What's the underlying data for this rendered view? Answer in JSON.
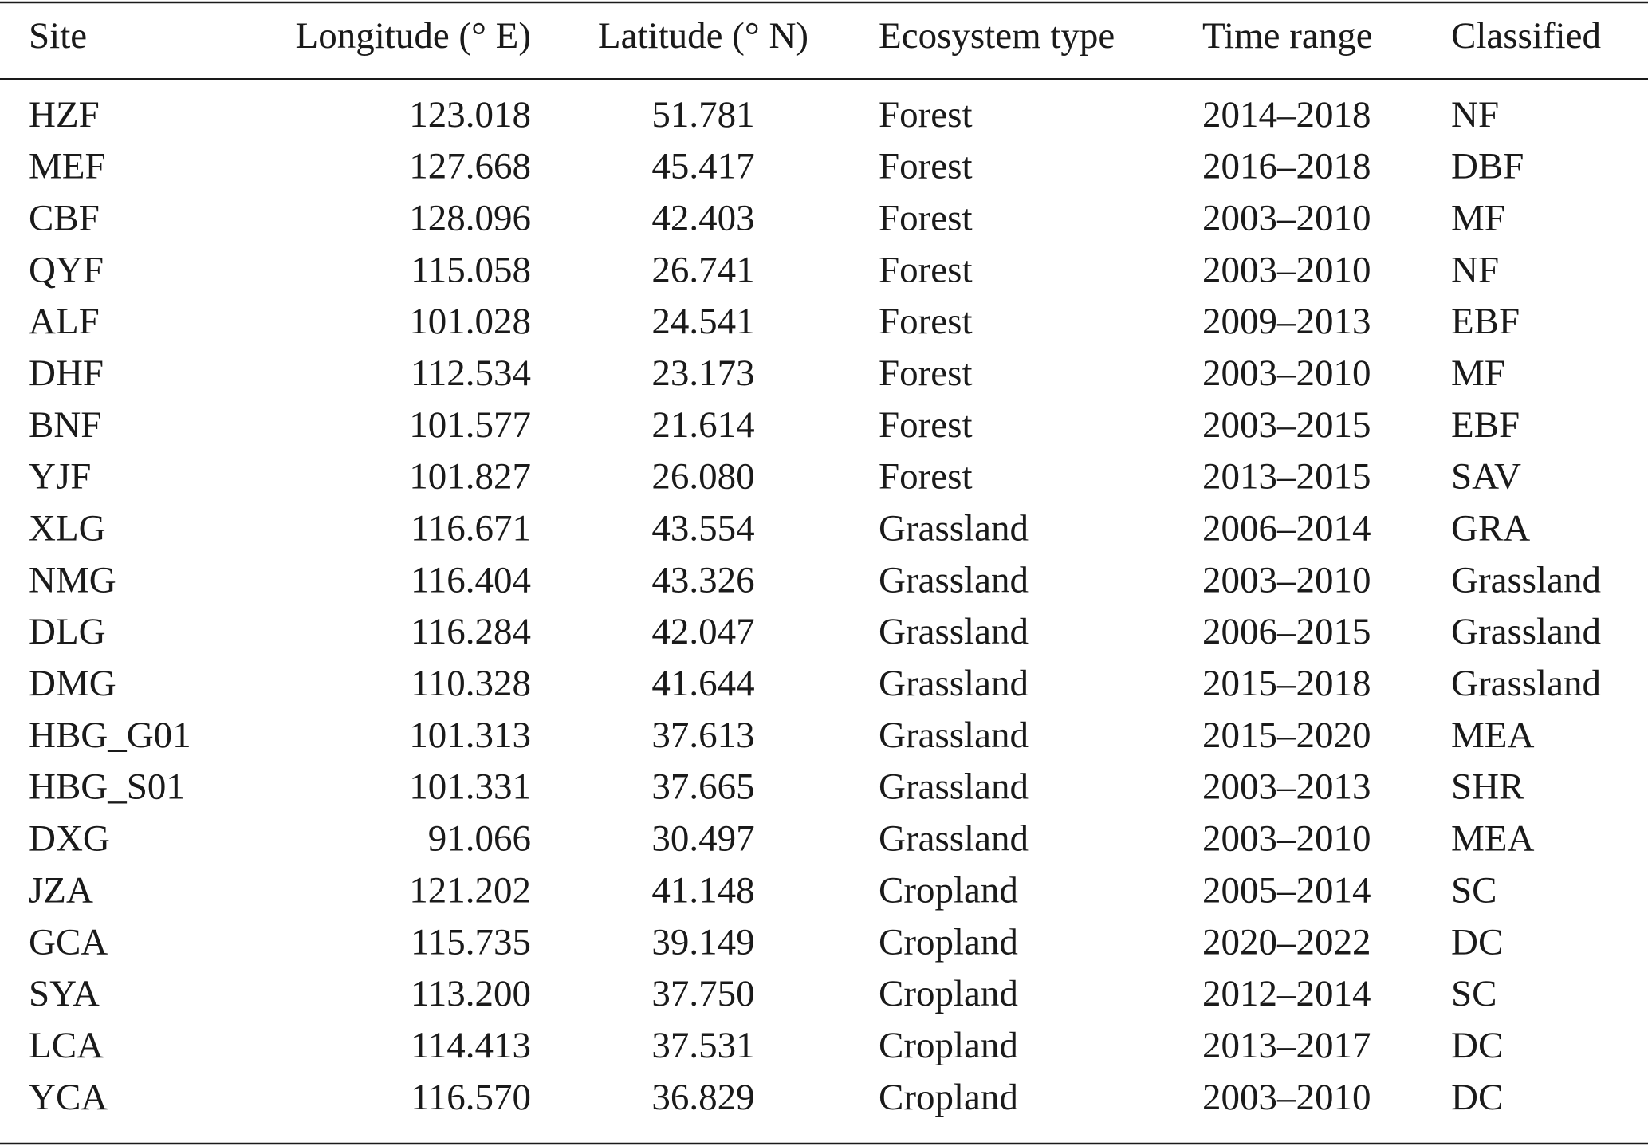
{
  "table": {
    "header": [
      "Site",
      "Longitude (° E)",
      "Latitude (° N)",
      "Ecosystem type",
      "Time range",
      "Classified"
    ],
    "rows": [
      [
        "HZF",
        "123.018",
        "51.781",
        "Forest",
        "2014–2018",
        "NF"
      ],
      [
        "MEF",
        "127.668",
        "45.417",
        "Forest",
        "2016–2018",
        "DBF"
      ],
      [
        "CBF",
        "128.096",
        "42.403",
        "Forest",
        "2003–2010",
        "MF"
      ],
      [
        "QYF",
        "115.058",
        "26.741",
        "Forest",
        "2003–2010",
        "NF"
      ],
      [
        "ALF",
        "101.028",
        "24.541",
        "Forest",
        "2009–2013",
        "EBF"
      ],
      [
        "DHF",
        "112.534",
        "23.173",
        "Forest",
        "2003–2010",
        "MF"
      ],
      [
        "BNF",
        "101.577",
        "21.614",
        "Forest",
        "2003–2015",
        "EBF"
      ],
      [
        "YJF",
        "101.827",
        "26.080",
        "Forest",
        "2013–2015",
        "SAV"
      ],
      [
        "XLG",
        "116.671",
        "43.554",
        "Grassland",
        "2006–2014",
        "GRA"
      ],
      [
        "NMG",
        "116.404",
        "43.326",
        "Grassland",
        "2003–2010",
        "Grassland"
      ],
      [
        "DLG",
        "116.284",
        "42.047",
        "Grassland",
        "2006–2015",
        "Grassland"
      ],
      [
        "DMG",
        "110.328",
        "41.644",
        "Grassland",
        "2015–2018",
        "Grassland"
      ],
      [
        "HBG_G01",
        "101.313",
        "37.613",
        "Grassland",
        "2015–2020",
        "MEA"
      ],
      [
        "HBG_S01",
        "101.331",
        "37.665",
        "Grassland",
        "2003–2013",
        "SHR"
      ],
      [
        "DXG",
        "91.066",
        "30.497",
        "Grassland",
        "2003–2010",
        "MEA"
      ],
      [
        "JZA",
        "121.202",
        "41.148",
        "Cropland",
        "2005–2014",
        "SC"
      ],
      [
        "GCA",
        "115.735",
        "39.149",
        "Cropland",
        "2020–2022",
        "DC"
      ],
      [
        "SYA",
        "113.200",
        "37.750",
        "Cropland",
        "2012–2014",
        "SC"
      ],
      [
        "LCA",
        "114.413",
        "37.531",
        "Cropland",
        "2013–2017",
        "DC"
      ],
      [
        "YCA",
        "116.570",
        "36.829",
        "Cropland",
        "2003–2010",
        "DC"
      ]
    ]
  }
}
